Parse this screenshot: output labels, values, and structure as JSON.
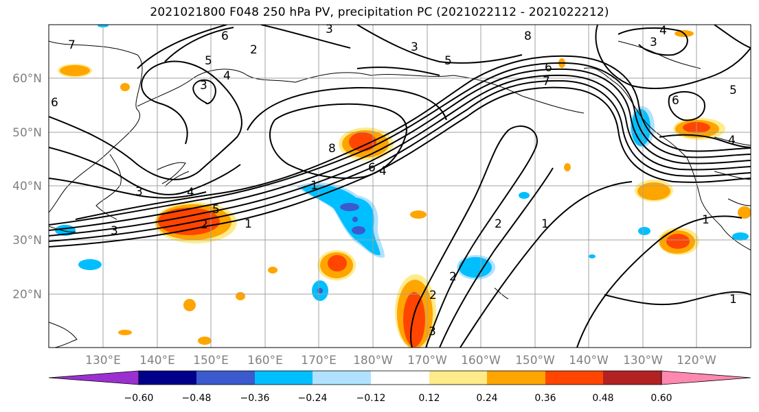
{
  "title": "2021021800 F048 250 hPa PV, precipitation PC (2021022112 - 2021022212)",
  "map": {
    "lat_labels": [
      "60°N",
      "50°N",
      "40°N",
      "30°N",
      "20°N"
    ],
    "lon_labels": [
      "130°E",
      "140°E",
      "150°E",
      "160°E",
      "170°E",
      "180°W",
      "170°W",
      "160°W",
      "150°W",
      "140°W",
      "130°W",
      "120°W"
    ],
    "contour_labels": [
      "7",
      "6",
      "5",
      "4",
      "3",
      "2",
      "3",
      "8",
      "5",
      "6",
      "4",
      "3",
      "6",
      "7",
      "8",
      "3",
      "4",
      "2",
      "5",
      "3",
      "4",
      "1",
      "6",
      "4",
      "5",
      "2",
      "3",
      "1",
      "1",
      "2",
      "1",
      "2",
      "3",
      "6",
      "1"
    ],
    "colors": {
      "pv_contour": "#000000",
      "grid": "#a0a0a0",
      "coast": "#000000"
    }
  },
  "colorbar": {
    "ticks": [
      "−0.60",
      "−0.48",
      "−0.36",
      "−0.24",
      "−0.12",
      "0.12",
      "0.24",
      "0.36",
      "0.48",
      "0.60"
    ],
    "colors": [
      "#9b30d0",
      "#00008b",
      "#3a5acd",
      "#00bfff",
      "#b0e2ff",
      "#ffffff",
      "#ffeb8a",
      "#ffa500",
      "#ff4500",
      "#b22222",
      "#ff88b0"
    ]
  }
}
